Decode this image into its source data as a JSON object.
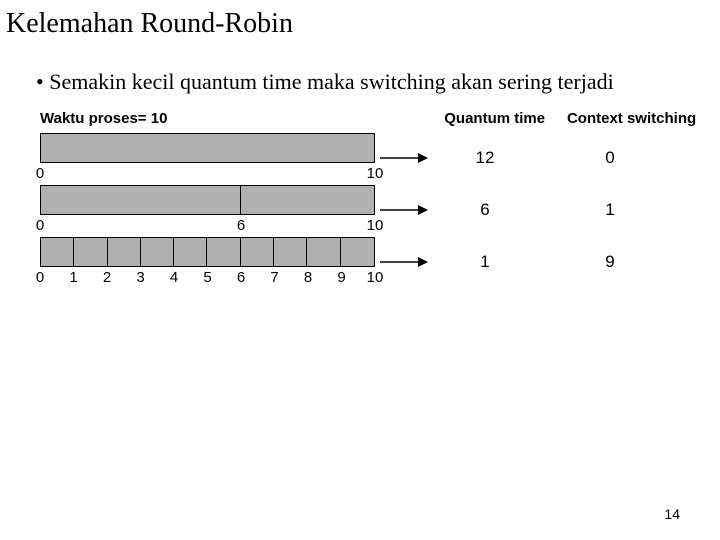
{
  "title": "Kelemahan Round-Robin",
  "bullet": "Semakin kecil quantum time maka switching akan sering terjadi",
  "headers": {
    "left": "Waktu proses= 10",
    "quantum": "Quantum time",
    "context": "Context switching"
  },
  "bar_fill": "#b0b0b0",
  "bar_border": "#000000",
  "total": 10,
  "rows": [
    {
      "segments": [
        10
      ],
      "ticks": [
        0,
        10
      ],
      "quantum": 12,
      "context": 0
    },
    {
      "segments": [
        6,
        4
      ],
      "ticks": [
        0,
        6,
        10
      ],
      "quantum": 6,
      "context": 1
    },
    {
      "segments": [
        1,
        1,
        1,
        1,
        1,
        1,
        1,
        1,
        1,
        1
      ],
      "ticks": [
        0,
        1,
        2,
        3,
        4,
        5,
        6,
        7,
        8,
        9,
        10
      ],
      "quantum": 1,
      "context": 9
    }
  ],
  "page_number": 14
}
